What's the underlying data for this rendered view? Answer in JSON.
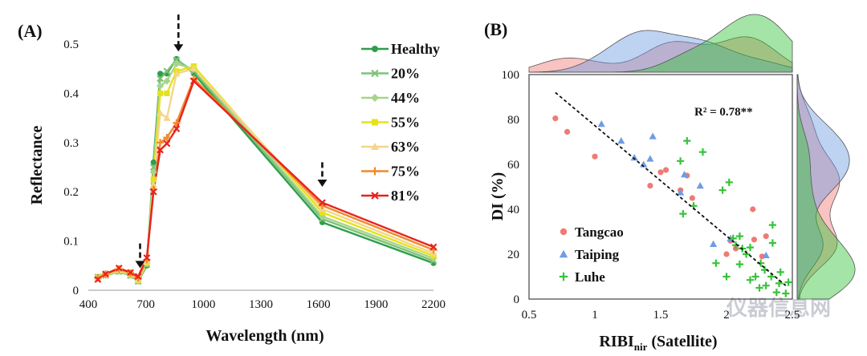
{
  "watermark": "仪器信息网",
  "chart_data": [
    {
      "type": "line",
      "panel_label": "(A)",
      "xlabel": "Wavelength (nm)",
      "ylabel": "Reflectance",
      "xlim": [
        400,
        2200
      ],
      "ylim": [
        0,
        0.5
      ],
      "xticks": [
        400,
        700,
        1000,
        1300,
        1600,
        1900,
        2200
      ],
      "yticks": [
        0,
        0.1,
        0.2,
        0.3,
        0.4,
        0.5
      ],
      "x": [
        450,
        490,
        560,
        620,
        660,
        705,
        740,
        775,
        810,
        860,
        950,
        1620,
        2200
      ],
      "series": [
        {
          "name": "Healthy",
          "color": "#2e9e4a",
          "marker": "circle",
          "values": [
            0.027,
            0.03,
            0.038,
            0.03,
            0.018,
            0.05,
            0.26,
            0.44,
            0.44,
            0.47,
            0.44,
            0.138,
            0.055
          ]
        },
        {
          "name": "20%",
          "color": "#7cc27a",
          "marker": "x",
          "values": [
            0.027,
            0.03,
            0.038,
            0.03,
            0.018,
            0.052,
            0.25,
            0.43,
            0.445,
            0.468,
            0.445,
            0.145,
            0.06
          ]
        },
        {
          "name": "44%",
          "color": "#a8d48a",
          "marker": "diamond",
          "values": [
            0.027,
            0.031,
            0.039,
            0.031,
            0.019,
            0.054,
            0.24,
            0.415,
            0.425,
            0.46,
            0.45,
            0.15,
            0.065
          ]
        },
        {
          "name": "55%",
          "color": "#e6e21a",
          "marker": "square",
          "values": [
            0.026,
            0.031,
            0.04,
            0.032,
            0.02,
            0.056,
            0.225,
            0.4,
            0.4,
            0.445,
            0.455,
            0.158,
            0.07
          ]
        },
        {
          "name": "63%",
          "color": "#f3d68a",
          "marker": "triangle",
          "values": [
            0.026,
            0.032,
            0.041,
            0.033,
            0.021,
            0.058,
            0.215,
            0.36,
            0.35,
            0.44,
            0.45,
            0.165,
            0.075
          ]
        },
        {
          "name": "75%",
          "color": "#ef8a2c",
          "marker": "plus",
          "values": [
            0.025,
            0.033,
            0.043,
            0.035,
            0.025,
            0.062,
            0.205,
            0.3,
            0.31,
            0.34,
            0.43,
            0.172,
            0.082
          ]
        },
        {
          "name": "81%",
          "color": "#e8231f",
          "marker": "x",
          "values": [
            0.022,
            0.033,
            0.045,
            0.036,
            0.028,
            0.066,
            0.2,
            0.285,
            0.298,
            0.328,
            0.425,
            0.178,
            0.088
          ]
        }
      ],
      "annotations": [
        {
          "type": "dashed-arrow",
          "x": 670,
          "y_from": 0.095,
          "y_to": 0.045
        },
        {
          "type": "dashed-arrow",
          "x": 870,
          "y_from": 0.56,
          "y_to": 0.485
        },
        {
          "type": "dashed-arrow",
          "x": 1620,
          "y_from": 0.26,
          "y_to": 0.21
        }
      ]
    },
    {
      "type": "scatter",
      "panel_label": "(B)",
      "xlabel_main": "RIBI",
      "xlabel_sub": "nir",
      "xlabel_suffix": " (Satellite)",
      "ylabel": "DI (%)",
      "xlim": [
        0.5,
        2.5
      ],
      "ylim": [
        0,
        100
      ],
      "xticks": [
        0.5,
        1,
        1.5,
        2,
        2.5
      ],
      "xtick_labels": [
        "0.5",
        "1",
        "1.5",
        "2",
        "2.5"
      ],
      "yticks": [
        0,
        20,
        40,
        60,
        80,
        100
      ],
      "r2_label": "R² = 0.78**",
      "fit_line": {
        "x": [
          0.7,
          2.45
        ],
        "y": [
          92,
          6
        ]
      },
      "marginals": "density plots on top (x) and right (y)",
      "series": [
        {
          "name": "Tangcao",
          "color": "#ef7a76",
          "marker": "circle",
          "points": [
            [
              0.7,
              80.5
            ],
            [
              0.79,
              74.5
            ],
            [
              1.0,
              63.5
            ],
            [
              1.42,
              50.5
            ],
            [
              1.5,
              56.5
            ],
            [
              1.54,
              57.5
            ],
            [
              1.65,
              48.5
            ],
            [
              1.7,
              55
            ],
            [
              1.74,
              45
            ],
            [
              2.0,
              20
            ],
            [
              2.03,
              26
            ],
            [
              2.07,
              22.5
            ],
            [
              2.2,
              40
            ],
            [
              2.21,
              26.5
            ],
            [
              2.3,
              28
            ],
            [
              2.27,
              19
            ]
          ]
        },
        {
          "name": "Taiping",
          "color": "#6f9ce3",
          "marker": "triangle",
          "points": [
            [
              1.05,
              78
            ],
            [
              1.2,
              70.5
            ],
            [
              1.3,
              63
            ],
            [
              1.37,
              60
            ],
            [
              1.44,
              72.5
            ],
            [
              1.42,
              62.5
            ],
            [
              1.65,
              47.5
            ],
            [
              1.68,
              55.5
            ],
            [
              1.8,
              50.5
            ],
            [
              1.9,
              24.5
            ],
            [
              2.03,
              27
            ],
            [
              2.3,
              19.5
            ]
          ]
        },
        {
          "name": "Luhe",
          "color": "#36c43a",
          "marker": "plus",
          "points": [
            [
              1.65,
              61.5
            ],
            [
              1.7,
              70.5
            ],
            [
              1.82,
              65.5
            ],
            [
              1.67,
              38
            ],
            [
              1.75,
              41.5
            ],
            [
              1.97,
              48.5
            ],
            [
              2.02,
              52
            ],
            [
              1.92,
              16
            ],
            [
              2.0,
              10
            ],
            [
              2.07,
              24
            ],
            [
              2.12,
              22.5
            ],
            [
              2.15,
              20
            ],
            [
              2.1,
              15.5
            ],
            [
              2.18,
              8.5
            ],
            [
              2.05,
              27
            ],
            [
              2.1,
              28
            ],
            [
              2.18,
              23
            ],
            [
              2.22,
              10
            ],
            [
              2.25,
              5
            ],
            [
              2.26,
              16
            ],
            [
              2.3,
              6
            ],
            [
              2.35,
              33
            ],
            [
              2.35,
              25
            ],
            [
              2.34,
              10
            ],
            [
              2.38,
              3
            ],
            [
              2.4,
              7
            ],
            [
              2.41,
              12
            ],
            [
              2.45,
              2.5
            ],
            [
              2.47,
              7.5
            ],
            [
              2.29,
              13
            ]
          ]
        }
      ]
    }
  ]
}
